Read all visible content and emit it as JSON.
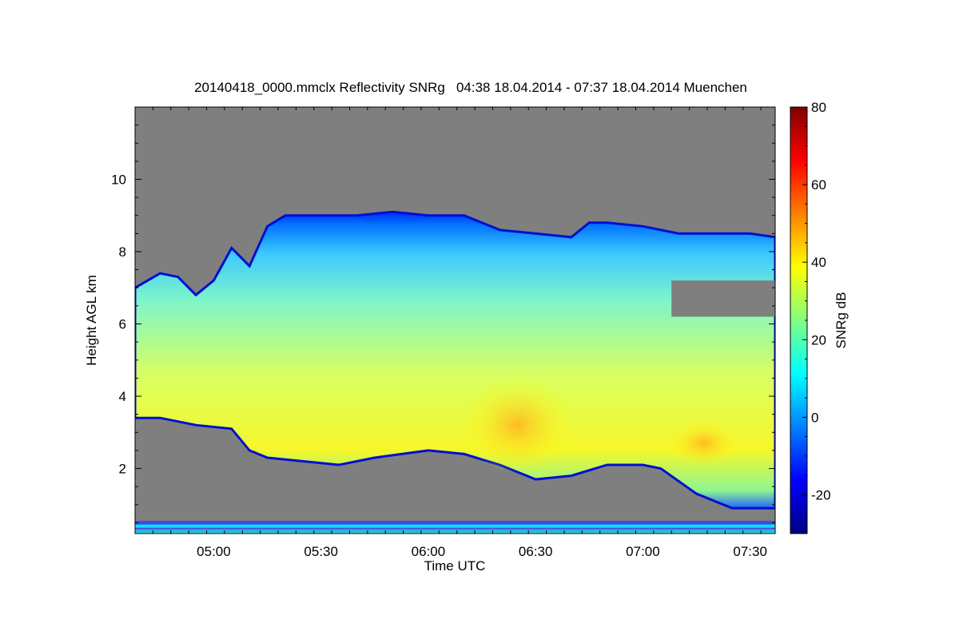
{
  "chart_data": {
    "type": "heatmap",
    "title": "20140418_0000.mmclx Reflectivity SNRg   04:38 18.04.2014 - 07:37 18.04.2014 Muenchen",
    "xlabel": "Time UTC",
    "ylabel": "Height AGL km",
    "colorbar_label": "SNRg dB",
    "x_range": [
      "04:38",
      "07:37"
    ],
    "x_ticks": [
      "05:00",
      "05:30",
      "06:00",
      "06:30",
      "07:00",
      "07:30"
    ],
    "y_range": [
      0.2,
      12
    ],
    "y_ticks": [
      "2",
      "4",
      "6",
      "8",
      "10"
    ],
    "colorbar_range": [
      -30,
      80
    ],
    "colorbar_ticks": [
      "80",
      "60",
      "40",
      "20",
      "0",
      "-20"
    ],
    "background_color": "#7f7f7f",
    "colormap": [
      "#000080",
      "#0000ff",
      "#0080ff",
      "#00ffff",
      "#80ff80",
      "#ffff00",
      "#ff8000",
      "#ff0000",
      "#800000"
    ],
    "cloud_top_km": [
      [
        "04:38",
        7.0
      ],
      [
        "04:45",
        7.4
      ],
      [
        "04:50",
        7.3
      ],
      [
        "04:55",
        6.8
      ],
      [
        "05:00",
        7.2
      ],
      [
        "05:05",
        8.1
      ],
      [
        "05:10",
        7.6
      ],
      [
        "05:15",
        8.7
      ],
      [
        "05:20",
        9.0
      ],
      [
        "05:30",
        9.0
      ],
      [
        "05:40",
        9.0
      ],
      [
        "05:50",
        9.1
      ],
      [
        "06:00",
        9.0
      ],
      [
        "06:10",
        9.0
      ],
      [
        "06:15",
        8.8
      ],
      [
        "06:20",
        8.6
      ],
      [
        "06:30",
        8.5
      ],
      [
        "06:40",
        8.4
      ],
      [
        "06:45",
        8.8
      ],
      [
        "06:50",
        8.8
      ],
      [
        "07:00",
        8.7
      ],
      [
        "07:10",
        8.5
      ],
      [
        "07:20",
        8.5
      ],
      [
        "07:30",
        8.5
      ],
      [
        "07:37",
        8.4
      ]
    ],
    "cloud_base_km": [
      [
        "04:38",
        3.4
      ],
      [
        "04:45",
        3.4
      ],
      [
        "04:55",
        3.2
      ],
      [
        "05:05",
        3.1
      ],
      [
        "05:10",
        2.5
      ],
      [
        "05:15",
        2.3
      ],
      [
        "05:25",
        2.2
      ],
      [
        "05:35",
        2.1
      ],
      [
        "05:45",
        2.3
      ],
      [
        "06:00",
        2.5
      ],
      [
        "06:10",
        2.4
      ],
      [
        "06:20",
        2.1
      ],
      [
        "06:30",
        1.7
      ],
      [
        "06:40",
        1.8
      ],
      [
        "06:50",
        2.1
      ],
      [
        "07:00",
        2.1
      ],
      [
        "07:05",
        2.0
      ],
      [
        "07:15",
        1.3
      ],
      [
        "07:25",
        0.9
      ],
      [
        "07:37",
        0.9
      ]
    ],
    "clear_gap": {
      "time_range": [
        "07:08",
        "07:37"
      ],
      "height_km": [
        6.2,
        7.2
      ]
    },
    "max_snr_regions": [
      {
        "time": "06:25",
        "height_km": 3.2,
        "snr_db": 42
      },
      {
        "time": "07:17",
        "height_km": 2.7,
        "snr_db": 45
      }
    ]
  }
}
